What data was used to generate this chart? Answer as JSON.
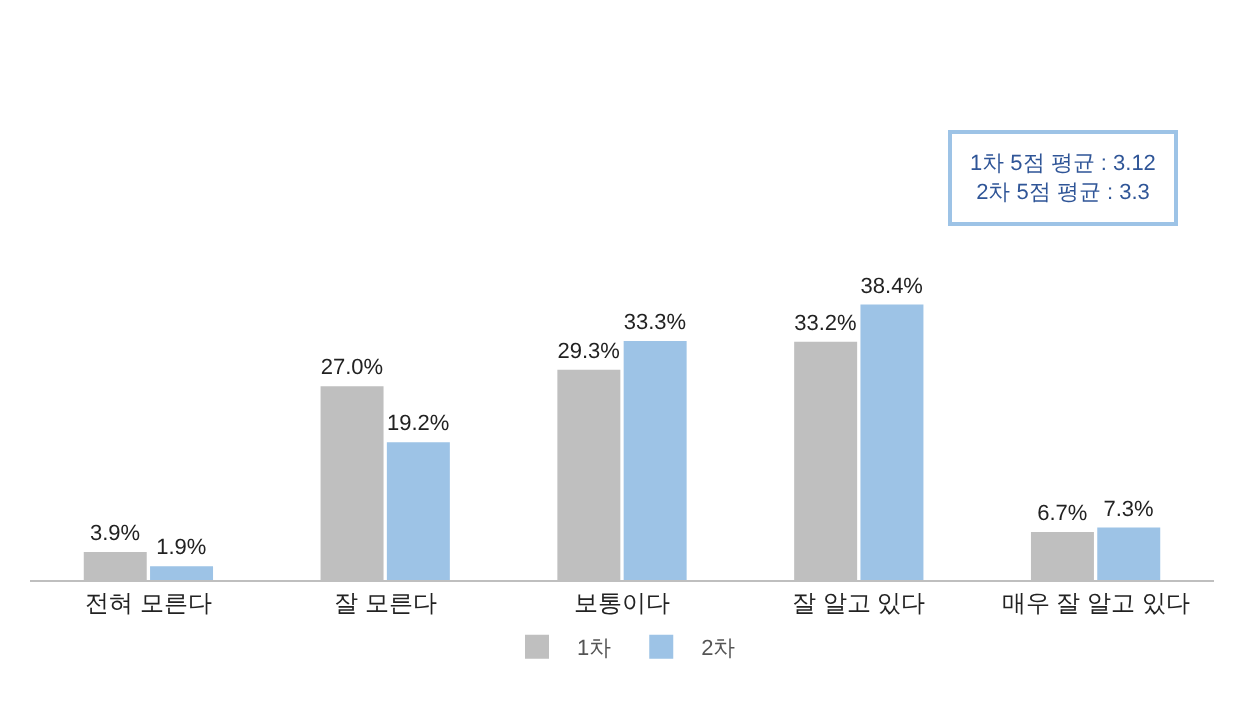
{
  "chart_data": {
    "type": "bar",
    "categories": [
      "전혀 모른다",
      "잘 모른다",
      "보통이다",
      "잘 알고 있다",
      "매우 잘 알고 있다"
    ],
    "series": [
      {
        "name": "1차",
        "color": "#bfbfbf",
        "values": [
          3.9,
          27.0,
          29.3,
          33.2,
          6.7
        ],
        "value_labels": [
          "3.9%",
          "27.0%",
          "29.3%",
          "33.2%",
          "6.7%"
        ]
      },
      {
        "name": "2차",
        "color": "#9dc3e6",
        "values": [
          1.9,
          19.2,
          33.3,
          38.4,
          7.3
        ],
        "value_labels": [
          "1.9%",
          "19.2%",
          "33.3%",
          "38.4%",
          "7.3%"
        ]
      }
    ],
    "annotations": [
      "1차 5점 평균 : 3.12",
      "2차 5점 평균 : 3.3"
    ],
    "legend": "bottom",
    "grid": false
  }
}
